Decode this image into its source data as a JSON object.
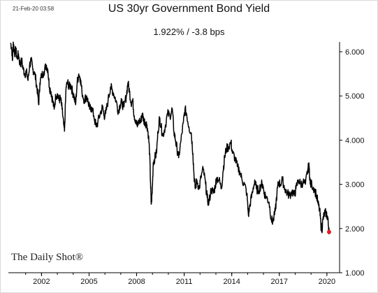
{
  "header": {
    "timestamp": "21-Feb-20 03:58",
    "title": "US 30yr Government Bond Yield",
    "subtitle": "1.922%  /  -3.8 bps"
  },
  "footer": {
    "logo_text": "The Daily Shot®"
  },
  "colors": {
    "line": "#000000",
    "last_point": "#e81b23",
    "axis": "#000000"
  },
  "chart_data": {
    "type": "line",
    "title": "US 30yr Government Bond Yield",
    "xlabel": "",
    "ylabel": "",
    "xlim": [
      2000.0,
      2020.8
    ],
    "ylim": [
      1.0,
      6.4
    ],
    "grid": false,
    "legend": "none",
    "y_ticks": [
      {
        "value": 6.0,
        "label": "6.000"
      },
      {
        "value": 5.0,
        "label": "5.000"
      },
      {
        "value": 4.0,
        "label": "4.000"
      },
      {
        "value": 3.0,
        "label": "3.000"
      },
      {
        "value": 2.0,
        "label": "2.000"
      },
      {
        "value": 1.0,
        "label": "1.000"
      }
    ],
    "x_ticks": [
      {
        "value": 2002,
        "label": "2002"
      },
      {
        "value": 2005,
        "label": "2005"
      },
      {
        "value": 2008,
        "label": "2008"
      },
      {
        "value": 2011,
        "label": "2011"
      },
      {
        "value": 2014,
        "label": "2014"
      },
      {
        "value": 2017,
        "label": "2017"
      },
      {
        "value": 2020,
        "label": "2020"
      }
    ],
    "series": [
      {
        "values": [
          [
            2000.05,
            6.2
          ],
          [
            2000.12,
            6.1
          ],
          [
            2000.17,
            5.8
          ],
          [
            2000.22,
            6.22
          ],
          [
            2000.3,
            5.95
          ],
          [
            2000.38,
            6.05
          ],
          [
            2000.45,
            5.85
          ],
          [
            2000.55,
            5.95
          ],
          [
            2000.65,
            5.7
          ],
          [
            2000.75,
            5.8
          ],
          [
            2000.85,
            5.6
          ],
          [
            2000.95,
            5.5
          ],
          [
            2001.05,
            5.55
          ],
          [
            2001.15,
            5.35
          ],
          [
            2001.25,
            5.7
          ],
          [
            2001.35,
            5.8
          ],
          [
            2001.45,
            5.6
          ],
          [
            2001.55,
            5.55
          ],
          [
            2001.65,
            5.35
          ],
          [
            2001.75,
            5.1
          ],
          [
            2001.82,
            4.8
          ],
          [
            2001.9,
            5.3
          ],
          [
            2002.0,
            5.45
          ],
          [
            2002.15,
            5.55
          ],
          [
            2002.3,
            5.7
          ],
          [
            2002.4,
            5.6
          ],
          [
            2002.5,
            5.2
          ],
          [
            2002.6,
            5.1
          ],
          [
            2002.7,
            4.9
          ],
          [
            2002.8,
            4.7
          ],
          [
            2002.9,
            5.0
          ],
          [
            2003.0,
            5.05
          ],
          [
            2003.1,
            4.9
          ],
          [
            2003.2,
            4.95
          ],
          [
            2003.3,
            4.7
          ],
          [
            2003.4,
            4.35
          ],
          [
            2003.45,
            4.2
          ],
          [
            2003.55,
            5.2
          ],
          [
            2003.65,
            5.3
          ],
          [
            2003.75,
            5.2
          ],
          [
            2003.85,
            5.25
          ],
          [
            2003.95,
            5.1
          ],
          [
            2004.05,
            5.0
          ],
          [
            2004.15,
            4.8
          ],
          [
            2004.25,
            5.3
          ],
          [
            2004.35,
            5.5
          ],
          [
            2004.45,
            5.4
          ],
          [
            2004.55,
            5.1
          ],
          [
            2004.7,
            4.9
          ],
          [
            2004.85,
            5.0
          ],
          [
            2004.95,
            4.85
          ],
          [
            2005.05,
            4.7
          ],
          [
            2005.15,
            4.75
          ],
          [
            2005.3,
            4.55
          ],
          [
            2005.45,
            4.3
          ],
          [
            2005.55,
            4.4
          ],
          [
            2005.7,
            4.6
          ],
          [
            2005.85,
            4.75
          ],
          [
            2005.95,
            4.55
          ],
          [
            2006.05,
            4.6
          ],
          [
            2006.2,
            4.9
          ],
          [
            2006.35,
            5.2
          ],
          [
            2006.45,
            5.15
          ],
          [
            2006.55,
            5.05
          ],
          [
            2006.7,
            4.9
          ],
          [
            2006.85,
            4.65
          ],
          [
            2006.95,
            4.8
          ],
          [
            2007.05,
            4.85
          ],
          [
            2007.2,
            4.75
          ],
          [
            2007.35,
            5.0
          ],
          [
            2007.45,
            5.3
          ],
          [
            2007.55,
            5.1
          ],
          [
            2007.65,
            4.85
          ],
          [
            2007.75,
            4.9
          ],
          [
            2007.85,
            4.55
          ],
          [
            2007.95,
            4.45
          ],
          [
            2008.05,
            4.3
          ],
          [
            2008.15,
            4.45
          ],
          [
            2008.25,
            4.4
          ],
          [
            2008.35,
            4.6
          ],
          [
            2008.45,
            4.45
          ],
          [
            2008.55,
            4.4
          ],
          [
            2008.65,
            4.35
          ],
          [
            2008.75,
            4.1
          ],
          [
            2008.82,
            3.7
          ],
          [
            2008.88,
            3.0
          ],
          [
            2008.92,
            2.55
          ],
          [
            2008.98,
            2.8
          ],
          [
            2009.05,
            3.5
          ],
          [
            2009.15,
            3.6
          ],
          [
            2009.25,
            3.7
          ],
          [
            2009.35,
            4.2
          ],
          [
            2009.45,
            4.5
          ],
          [
            2009.55,
            4.3
          ],
          [
            2009.65,
            4.1
          ],
          [
            2009.8,
            4.3
          ],
          [
            2009.95,
            4.6
          ],
          [
            2010.1,
            4.55
          ],
          [
            2010.25,
            4.7
          ],
          [
            2010.35,
            4.2
          ],
          [
            2010.45,
            4.0
          ],
          [
            2010.55,
            3.8
          ],
          [
            2010.65,
            3.6
          ],
          [
            2010.8,
            4.0
          ],
          [
            2010.95,
            4.4
          ],
          [
            2011.05,
            4.7
          ],
          [
            2011.15,
            4.6
          ],
          [
            2011.3,
            4.3
          ],
          [
            2011.45,
            4.15
          ],
          [
            2011.55,
            3.7
          ],
          [
            2011.62,
            3.2
          ],
          [
            2011.7,
            2.9
          ],
          [
            2011.8,
            3.1
          ],
          [
            2011.95,
            2.9
          ],
          [
            2012.05,
            3.15
          ],
          [
            2012.2,
            3.35
          ],
          [
            2012.35,
            3.0
          ],
          [
            2012.45,
            2.7
          ],
          [
            2012.55,
            2.55
          ],
          [
            2012.7,
            2.9
          ],
          [
            2012.85,
            2.8
          ],
          [
            2012.95,
            2.95
          ],
          [
            2013.05,
            3.15
          ],
          [
            2013.2,
            3.1
          ],
          [
            2013.35,
            2.9
          ],
          [
            2013.45,
            3.3
          ],
          [
            2013.55,
            3.6
          ],
          [
            2013.65,
            3.8
          ],
          [
            2013.8,
            3.85
          ],
          [
            2013.95,
            3.95
          ],
          [
            2014.05,
            3.7
          ],
          [
            2014.2,
            3.6
          ],
          [
            2014.35,
            3.4
          ],
          [
            2014.5,
            3.3
          ],
          [
            2014.65,
            3.1
          ],
          [
            2014.8,
            3.0
          ],
          [
            2014.95,
            2.8
          ],
          [
            2015.05,
            2.3
          ],
          [
            2015.15,
            2.55
          ],
          [
            2015.3,
            2.8
          ],
          [
            2015.45,
            3.1
          ],
          [
            2015.55,
            2.9
          ],
          [
            2015.7,
            2.85
          ],
          [
            2015.85,
            3.0
          ],
          [
            2015.95,
            3.0
          ],
          [
            2016.05,
            2.8
          ],
          [
            2016.2,
            2.7
          ],
          [
            2016.35,
            2.6
          ],
          [
            2016.5,
            2.2
          ],
          [
            2016.6,
            2.15
          ],
          [
            2016.75,
            2.4
          ],
          [
            2016.85,
            2.8
          ],
          [
            2016.95,
            3.05
          ],
          [
            2017.05,
            3.0
          ],
          [
            2017.2,
            3.1
          ],
          [
            2017.35,
            2.9
          ],
          [
            2017.5,
            2.8
          ],
          [
            2017.65,
            2.75
          ],
          [
            2017.8,
            2.85
          ],
          [
            2017.95,
            2.75
          ],
          [
            2018.05,
            2.9
          ],
          [
            2018.2,
            3.1
          ],
          [
            2018.35,
            3.0
          ],
          [
            2018.5,
            3.05
          ],
          [
            2018.65,
            3.0
          ],
          [
            2018.8,
            3.35
          ],
          [
            2018.88,
            3.4
          ],
          [
            2018.95,
            3.0
          ],
          [
            2019.05,
            3.0
          ],
          [
            2019.2,
            2.9
          ],
          [
            2019.35,
            2.75
          ],
          [
            2019.45,
            2.55
          ],
          [
            2019.55,
            2.4
          ],
          [
            2019.62,
            2.1
          ],
          [
            2019.68,
            1.95
          ],
          [
            2019.75,
            2.2
          ],
          [
            2019.85,
            2.35
          ],
          [
            2019.95,
            2.35
          ],
          [
            2020.05,
            2.25
          ],
          [
            2020.1,
            2.05
          ],
          [
            2020.14,
            1.922
          ]
        ]
      }
    ],
    "last_point": {
      "x": 2020.14,
      "y": 1.922
    }
  }
}
